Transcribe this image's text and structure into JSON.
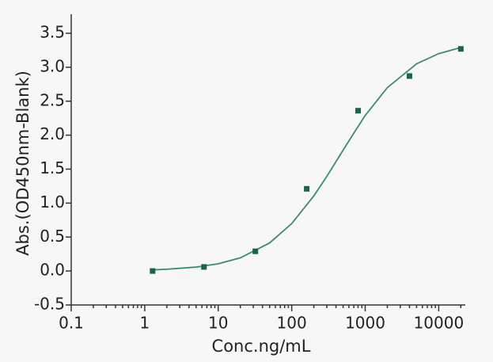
{
  "chart_data": {
    "type": "scatter",
    "xlabel": "Conc.ng/mL",
    "ylabel": "Abs.(OD450nm-Blank)",
    "x": [
      1.28,
      6.4,
      32,
      160,
      800,
      4000,
      20000
    ],
    "values": [
      0.0,
      0.06,
      0.29,
      1.21,
      2.36,
      2.87,
      3.27
    ],
    "color": "#17654a",
    "curve": {
      "color": "#3a8c6f",
      "x": [
        1.2,
        2,
        5,
        10,
        20,
        50,
        100,
        200,
        300,
        500,
        700,
        1000,
        2000,
        5000,
        10000,
        20000
      ],
      "values": [
        0.016,
        0.026,
        0.058,
        0.107,
        0.194,
        0.413,
        0.698,
        1.106,
        1.393,
        1.78,
        2.03,
        2.29,
        2.7,
        3.05,
        3.2,
        3.29
      ]
    },
    "xscale": "log",
    "xlim": [
      0.1,
      23000
    ],
    "xticks": [
      0.1,
      1,
      10,
      100,
      1000,
      10000
    ],
    "ylim": [
      -0.5,
      3.78
    ],
    "yticks": [
      -0.5,
      {
        "value": 0,
        "label": "0.0"
      },
      0.5,
      {
        "value": 1,
        "label": "1.0"
      },
      1.5,
      {
        "value": 2,
        "label": "2.0"
      },
      2.5,
      {
        "value": 3,
        "label": "3.0"
      },
      3.5
    ]
  }
}
